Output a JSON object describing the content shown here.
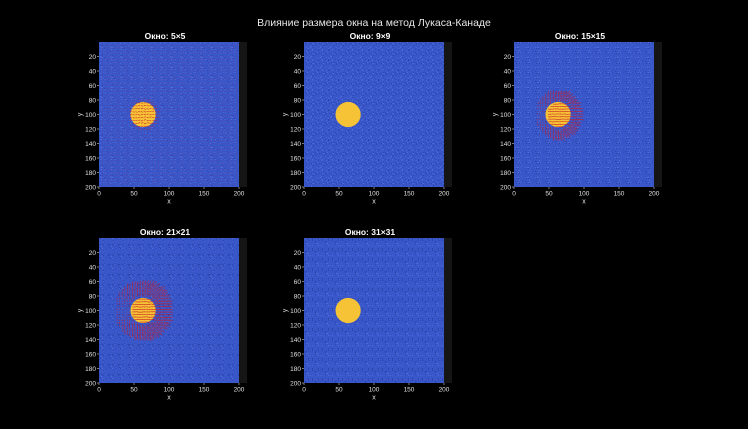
{
  "figure": {
    "title": "Влияние размера окна на метод Лукаса-Канаде"
  },
  "colors": {
    "background": "#000000",
    "noise_base": "#3a57c9",
    "disk": "#f6c336",
    "disk_edge": "#d8a020",
    "vectors": "#c81e2a",
    "strip": "#151515"
  },
  "chart_data": [
    {
      "type": "heatmap",
      "title": "Окно: 5×5",
      "xlabel": "x",
      "ylabel": "y",
      "xlim": [
        0,
        200
      ],
      "ylim": [
        200,
        0
      ],
      "xticks": [
        0,
        50,
        100,
        150,
        200
      ],
      "yticks": [
        20,
        40,
        60,
        80,
        100,
        120,
        140,
        160,
        180,
        200
      ],
      "disk_center": [
        63,
        100
      ],
      "disk_radius": 18,
      "flow_vectors": "dense",
      "flow_extent": 22
    },
    {
      "type": "heatmap",
      "title": "Окно: 9×9",
      "xlabel": "x",
      "ylabel": "y",
      "xlim": [
        0,
        200
      ],
      "ylim": [
        200,
        0
      ],
      "xticks": [
        0,
        50,
        100,
        150,
        200
      ],
      "yticks": [
        20,
        40,
        60,
        80,
        100,
        120,
        140,
        160,
        180,
        200
      ],
      "disk_center": [
        63,
        100
      ],
      "disk_radius": 18,
      "flow_vectors": "none",
      "flow_extent": 0
    },
    {
      "type": "heatmap",
      "title": "Окно: 15×15",
      "xlabel": "x",
      "ylabel": "y",
      "xlim": [
        0,
        200
      ],
      "ylim": [
        200,
        0
      ],
      "xticks": [
        0,
        50,
        100,
        150,
        200
      ],
      "yticks": [
        20,
        40,
        60,
        80,
        100,
        120,
        140,
        160,
        180,
        200
      ],
      "disk_center": [
        63,
        100
      ],
      "disk_radius": 18,
      "flow_vectors": "around-disk",
      "flow_extent": 32
    },
    {
      "type": "heatmap",
      "title": "Окно: 21×21",
      "xlabel": "x",
      "ylabel": "y",
      "xlim": [
        0,
        200
      ],
      "ylim": [
        200,
        0
      ],
      "xticks": [
        0,
        50,
        100,
        150,
        200
      ],
      "yticks": [
        20,
        40,
        60,
        80,
        100,
        120,
        140,
        160,
        180,
        200
      ],
      "disk_center": [
        63,
        100
      ],
      "disk_radius": 18,
      "flow_vectors": "around-disk",
      "flow_extent": 40
    },
    {
      "type": "heatmap",
      "title": "Окно: 31×31",
      "xlabel": "x",
      "ylabel": "y",
      "xlim": [
        0,
        200
      ],
      "ylim": [
        200,
        0
      ],
      "xticks": [
        0,
        50,
        100,
        150,
        200
      ],
      "yticks": [
        20,
        40,
        60,
        80,
        100,
        120,
        140,
        160,
        180,
        200
      ],
      "disk_center": [
        63,
        100
      ],
      "disk_radius": 18,
      "flow_vectors": "none",
      "flow_extent": 0
    }
  ]
}
